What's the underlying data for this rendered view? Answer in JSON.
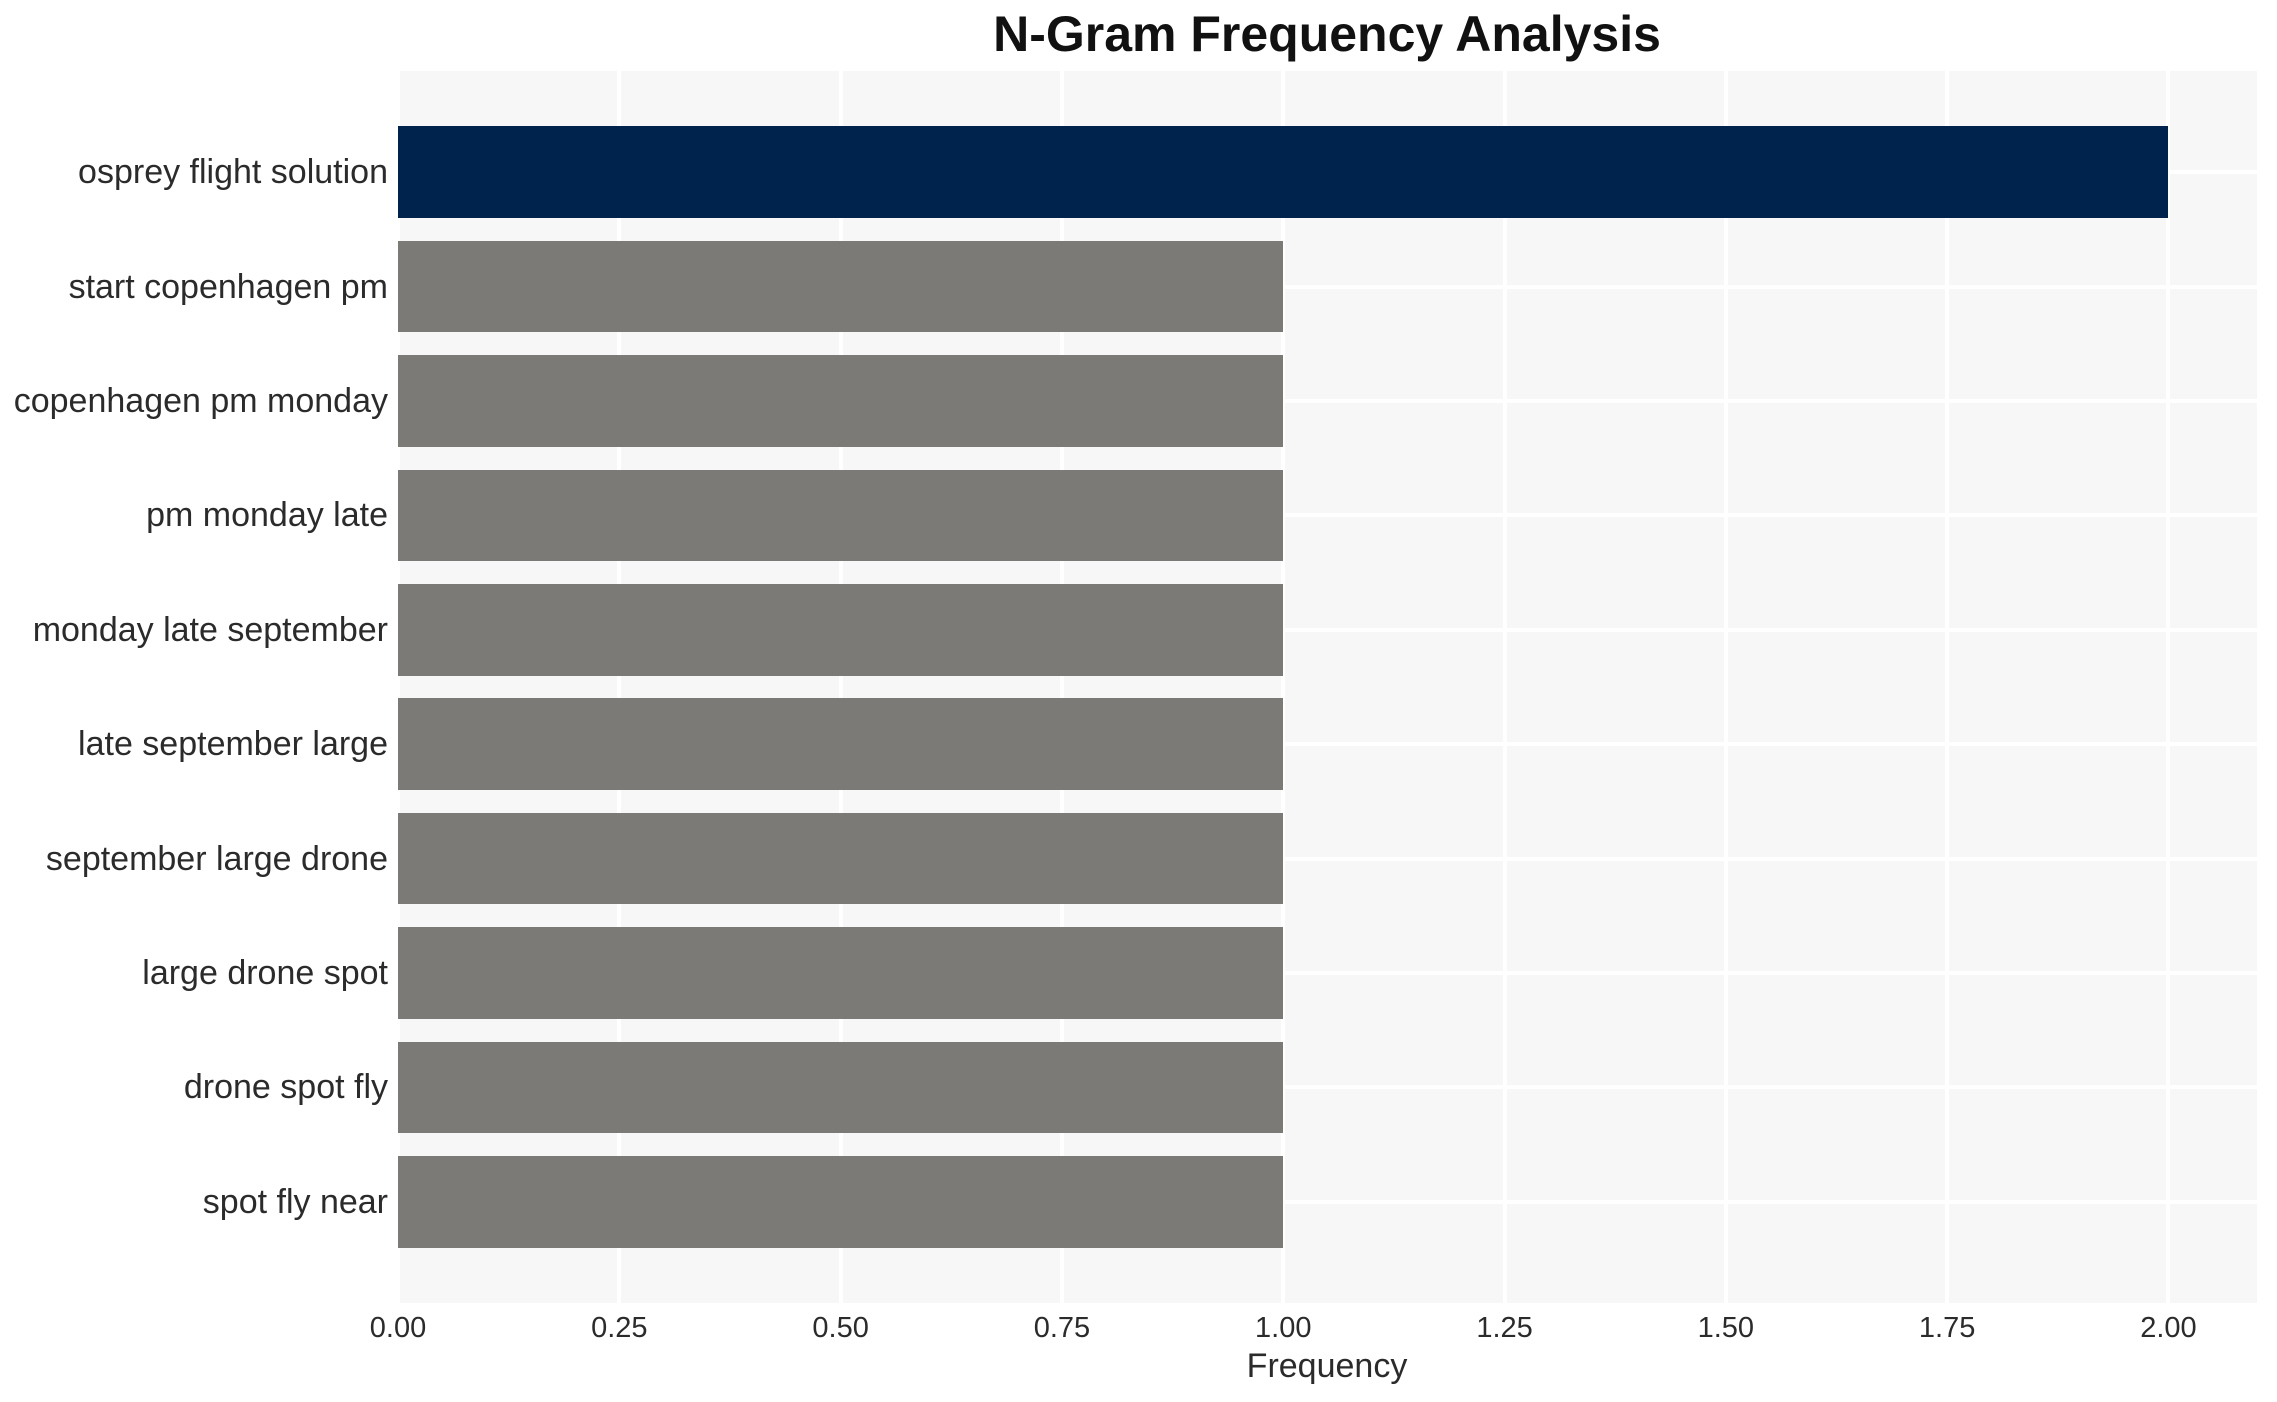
{
  "chart_data": {
    "type": "bar",
    "orientation": "horizontal",
    "title": "N-Gram Frequency Analysis",
    "xlabel": "Frequency",
    "ylabel": "",
    "categories": [
      "osprey flight solution",
      "start copenhagen pm",
      "copenhagen pm monday",
      "pm monday late",
      "monday late september",
      "late september large",
      "september large drone",
      "large drone spot",
      "drone spot fly",
      "spot fly near"
    ],
    "values": [
      2,
      1,
      1,
      1,
      1,
      1,
      1,
      1,
      1,
      1
    ],
    "bar_colors": [
      "#00234d",
      "#7b7a76",
      "#7b7a76",
      "#7b7a76",
      "#7b7a76",
      "#7b7a76",
      "#7b7a76",
      "#7b7a76",
      "#7b7a76",
      "#7b7a76"
    ],
    "xlim": [
      0,
      2.1
    ],
    "xticks": [
      0,
      0.25,
      0.5,
      0.75,
      1.0,
      1.25,
      1.5,
      1.75,
      2.0
    ],
    "xtick_labels": [
      "0.00",
      "0.25",
      "0.50",
      "0.75",
      "1.00",
      "1.25",
      "1.50",
      "1.75",
      "2.00"
    ],
    "grid": true,
    "legend_position": "none",
    "plot_bg": "#f7f7f7",
    "grid_color": "#ffffff"
  }
}
